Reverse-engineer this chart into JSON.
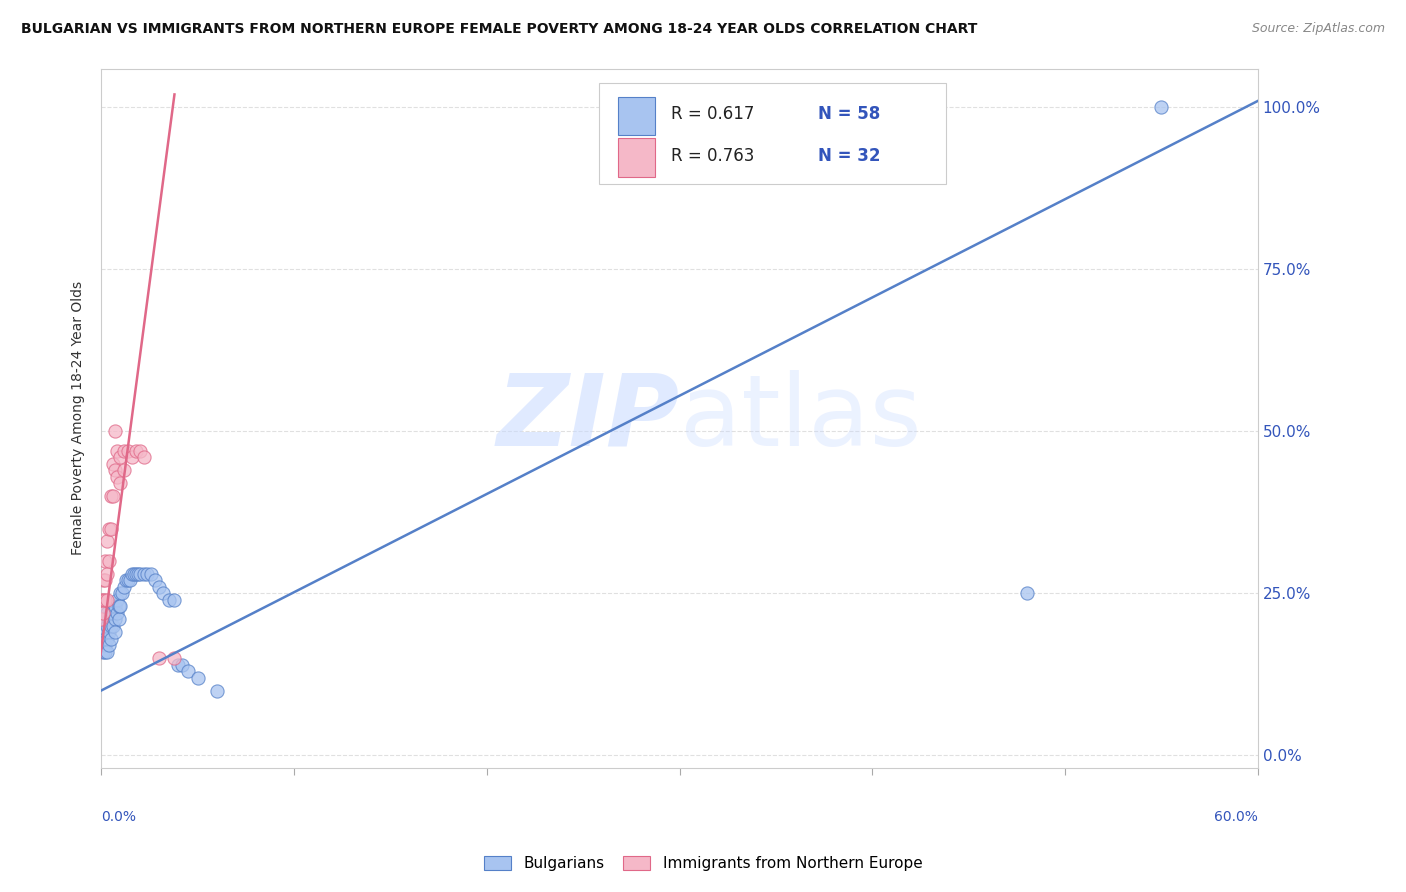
{
  "title": "BULGARIAN VS IMMIGRANTS FROM NORTHERN EUROPE FEMALE POVERTY AMONG 18-24 YEAR OLDS CORRELATION CHART",
  "source": "Source: ZipAtlas.com",
  "ylabel": "Female Poverty Among 18-24 Year Olds",
  "legend_blue_label": "Bulgarians",
  "legend_pink_label": "Immigrants from Northern Europe",
  "R_blue": 0.617,
  "N_blue": 58,
  "R_pink": 0.763,
  "N_pink": 32,
  "blue_fill": "#a8c4f0",
  "blue_edge": "#5580c8",
  "pink_fill": "#f5b8c8",
  "pink_edge": "#e06888",
  "blue_line": "#5580c8",
  "pink_line": "#e06888",
  "text_blue": "#3355bb",
  "text_dark": "#222222",
  "watermark_color": "#c8daff",
  "grid_color": "#e0e0e0",
  "background": "#ffffff",
  "xlim": [
    0.0,
    0.6
  ],
  "ylim": [
    -0.02,
    1.06
  ],
  "ytick_vals": [
    0.0,
    0.25,
    0.5,
    0.75,
    1.0
  ],
  "ytick_labels": [
    "0.0%",
    "25.0%",
    "50.0%",
    "75.0%",
    "100.0%"
  ],
  "xtick_vals": [
    0.0,
    0.1,
    0.2,
    0.3,
    0.4,
    0.5,
    0.6
  ],
  "blue_line_x": [
    0.0,
    0.6
  ],
  "blue_line_y": [
    0.1,
    1.01
  ],
  "pink_line_x": [
    -0.005,
    0.038
  ],
  "pink_line_y": [
    0.05,
    1.02
  ],
  "blue_x": [
    0.0,
    0.001,
    0.001,
    0.001,
    0.001,
    0.001,
    0.001,
    0.002,
    0.002,
    0.002,
    0.002,
    0.002,
    0.003,
    0.003,
    0.003,
    0.003,
    0.004,
    0.004,
    0.004,
    0.005,
    0.005,
    0.005,
    0.006,
    0.006,
    0.007,
    0.007,
    0.007,
    0.008,
    0.008,
    0.009,
    0.009,
    0.01,
    0.01,
    0.011,
    0.012,
    0.013,
    0.014,
    0.015,
    0.016,
    0.017,
    0.018,
    0.019,
    0.02,
    0.022,
    0.024,
    0.026,
    0.028,
    0.03,
    0.032,
    0.035,
    0.038,
    0.04,
    0.042,
    0.045,
    0.05,
    0.06,
    0.55,
    0.48
  ],
  "blue_y": [
    0.2,
    0.23,
    0.2,
    0.19,
    0.18,
    0.17,
    0.16,
    0.21,
    0.19,
    0.18,
    0.17,
    0.16,
    0.22,
    0.2,
    0.18,
    0.16,
    0.21,
    0.19,
    0.17,
    0.22,
    0.2,
    0.18,
    0.22,
    0.2,
    0.23,
    0.21,
    0.19,
    0.24,
    0.22,
    0.23,
    0.21,
    0.25,
    0.23,
    0.25,
    0.26,
    0.27,
    0.27,
    0.27,
    0.28,
    0.28,
    0.28,
    0.28,
    0.28,
    0.28,
    0.28,
    0.28,
    0.27,
    0.26,
    0.25,
    0.24,
    0.24,
    0.14,
    0.14,
    0.13,
    0.12,
    0.1,
    1.0,
    0.25
  ],
  "pink_x": [
    0.0,
    0.0,
    0.001,
    0.001,
    0.001,
    0.002,
    0.002,
    0.002,
    0.003,
    0.003,
    0.003,
    0.004,
    0.004,
    0.005,
    0.005,
    0.006,
    0.006,
    0.007,
    0.007,
    0.008,
    0.008,
    0.01,
    0.01,
    0.012,
    0.012,
    0.014,
    0.016,
    0.018,
    0.02,
    0.022,
    0.03,
    0.038
  ],
  "pink_y": [
    0.21,
    0.24,
    0.27,
    0.24,
    0.22,
    0.3,
    0.27,
    0.24,
    0.33,
    0.28,
    0.24,
    0.35,
    0.3,
    0.4,
    0.35,
    0.45,
    0.4,
    0.5,
    0.44,
    0.47,
    0.43,
    0.46,
    0.42,
    0.47,
    0.44,
    0.47,
    0.46,
    0.47,
    0.47,
    0.46,
    0.15,
    0.15
  ]
}
